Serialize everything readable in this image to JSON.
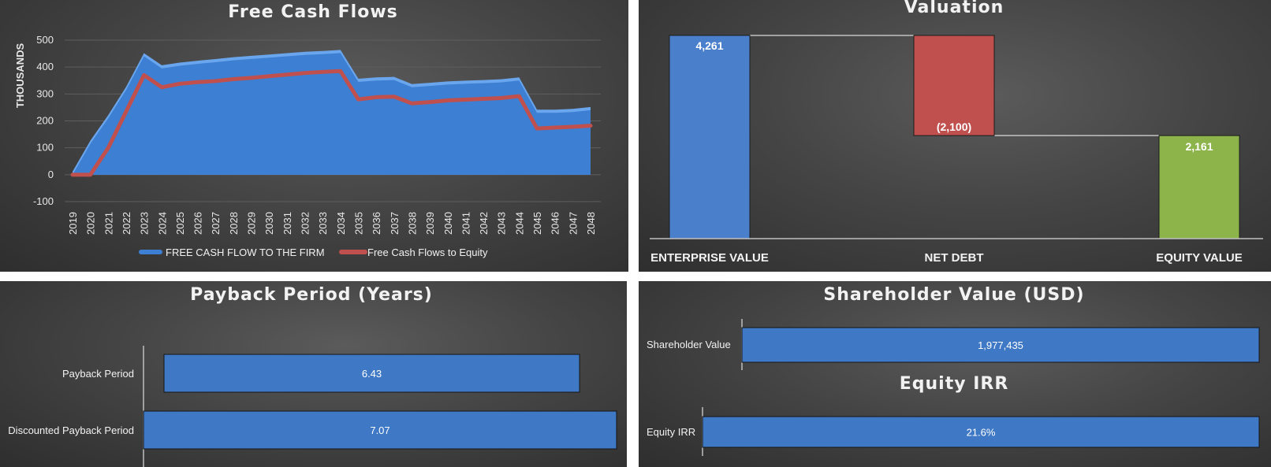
{
  "colors": {
    "fcff_fill": "#3d7fd3",
    "fcff_edge": "#6aa6ee",
    "fcfe_line": "#c0504d",
    "net_debt": "#c0504d",
    "equity": "#8db44a",
    "enterprise": "#4a7fcc",
    "bar": "#3f78c5"
  },
  "chart_data": [
    {
      "type": "area",
      "title": "Free Cash Flows",
      "ylabel": "THOUSANDS",
      "xlabel": "",
      "ylim": [
        -100,
        500
      ],
      "yticks": [
        "500",
        "400",
        "300",
        "200",
        "100",
        "0",
        "-100"
      ],
      "legend_position": "bottom",
      "grid": true,
      "categories": [
        "2019",
        "2020",
        "2021",
        "2022",
        "2023",
        "2024",
        "2025",
        "2026",
        "2027",
        "2028",
        "2029",
        "2030",
        "2031",
        "2032",
        "2033",
        "2034",
        "2035",
        "2036",
        "2037",
        "2038",
        "2039",
        "2040",
        "2041",
        "2042",
        "2043",
        "2044",
        "2045",
        "2046",
        "2047",
        "2048"
      ],
      "series": [
        {
          "name": "FREE CASH FLOW TO THE FIRM",
          "values": [
            0,
            115,
            210,
            315,
            440,
            395,
            405,
            412,
            418,
            425,
            430,
            435,
            440,
            445,
            448,
            452,
            345,
            350,
            352,
            325,
            330,
            335,
            338,
            340,
            343,
            350,
            230,
            230,
            233,
            240
          ]
        },
        {
          "name": "Free Cash Flows to Equity",
          "values": [
            0,
            0,
            100,
            235,
            370,
            325,
            338,
            344,
            348,
            355,
            360,
            366,
            372,
            378,
            382,
            385,
            280,
            288,
            290,
            265,
            270,
            276,
            279,
            282,
            285,
            292,
            172,
            175,
            178,
            182
          ]
        }
      ]
    },
    {
      "type": "bar",
      "subtype": "waterfall",
      "title": "Valuation",
      "categories": [
        "ENTERPRISE VALUE",
        "NET DEBT",
        "EQUITY VALUE"
      ],
      "values": [
        4261,
        -2100,
        2161
      ],
      "labels": [
        "4,261",
        "(2,100)",
        "2,161"
      ]
    },
    {
      "type": "bar",
      "orientation": "horizontal",
      "title": "Payback Period (Years)",
      "categories": [
        "Payback Period",
        "Discounted Payback Period"
      ],
      "values": [
        6.43,
        7.07
      ],
      "labels": [
        "6.43",
        "7.07"
      ]
    },
    {
      "type": "bar",
      "orientation": "horizontal",
      "title": "Shareholder Value (USD)",
      "categories": [
        "Shareholder Value"
      ],
      "values": [
        1977435
      ],
      "labels": [
        "1,977,435"
      ]
    },
    {
      "type": "bar",
      "orientation": "horizontal",
      "title": "Equity IRR",
      "categories": [
        "Equity IRR"
      ],
      "values": [
        21.6
      ],
      "labels": [
        "21.6%"
      ]
    }
  ]
}
